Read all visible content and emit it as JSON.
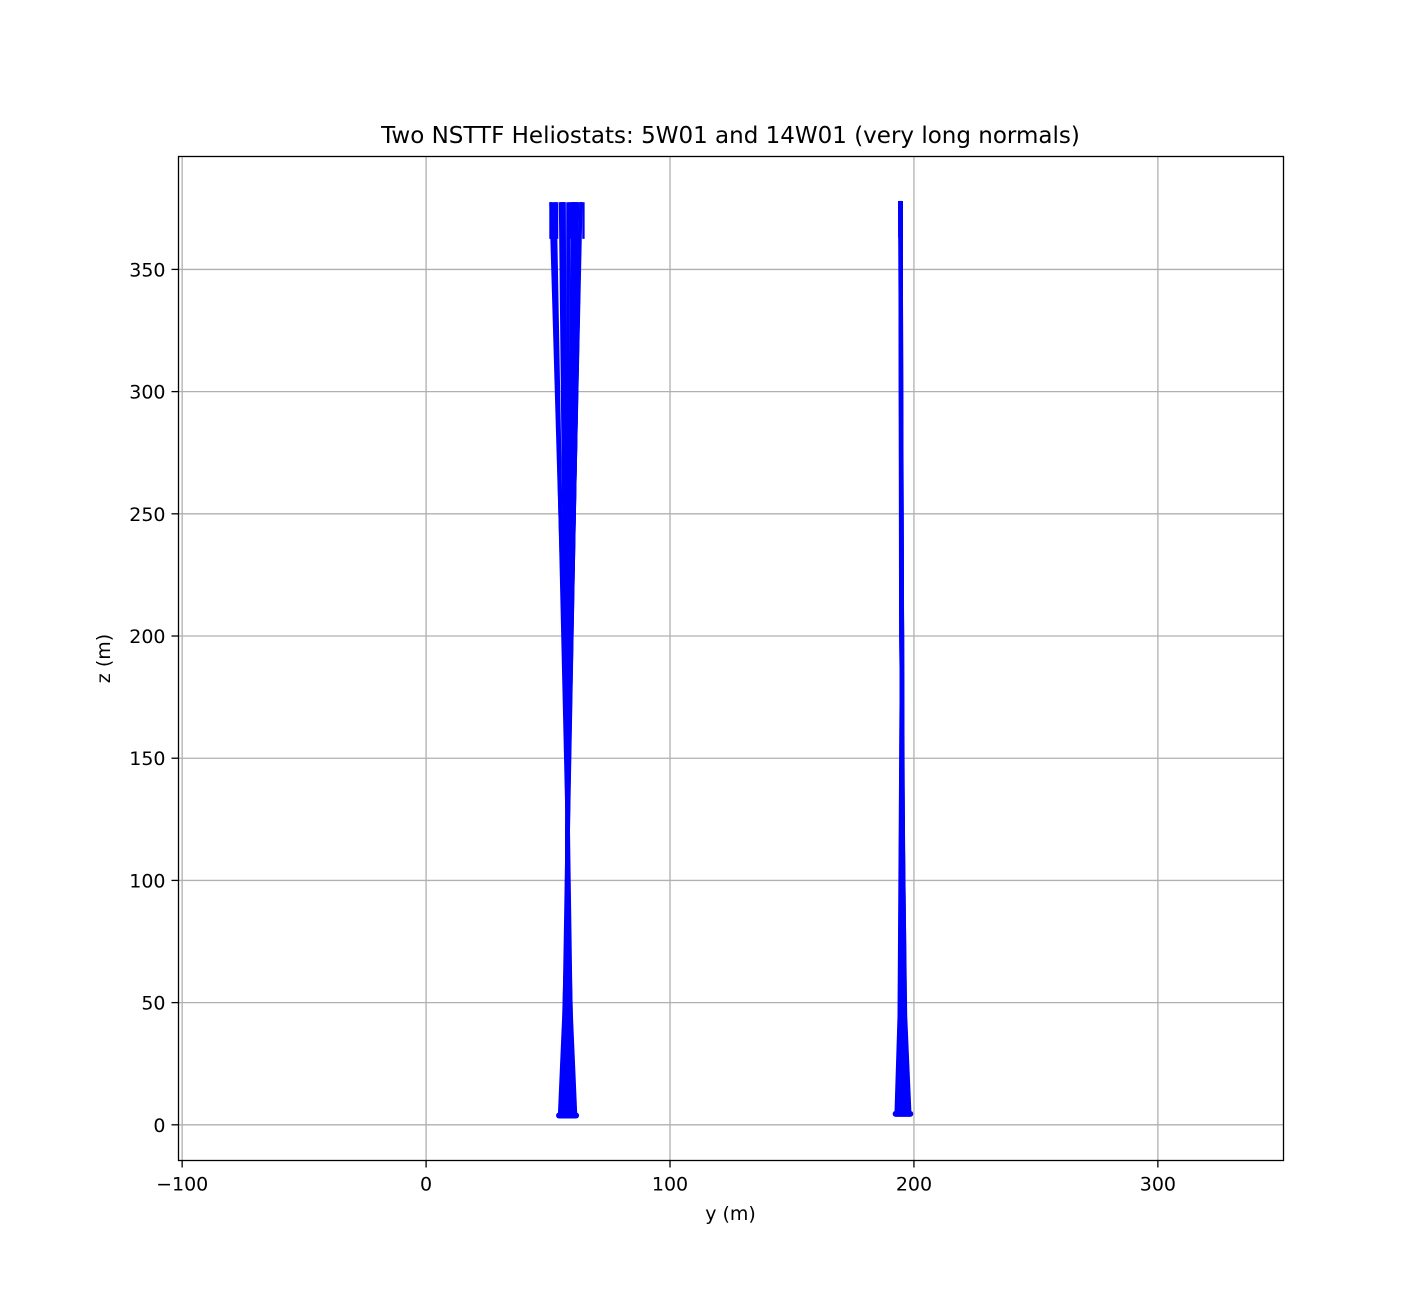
{
  "chart_data": {
    "type": "line",
    "title": "Two NSTTF Heliostats: 5W01 and 14W01 (very long normals)",
    "xlabel": "y (m)",
    "ylabel": "z (m)",
    "xlim": [
      -101.5,
      351.5
    ],
    "ylim": [
      -14.6,
      396.2
    ],
    "xticks": [
      -100,
      0,
      100,
      200,
      300
    ],
    "xtick_labels": [
      "−100",
      "0",
      "100",
      "200",
      "300"
    ],
    "yticks": [
      0,
      50,
      100,
      150,
      200,
      250,
      300,
      350
    ],
    "ytick_labels": [
      "0",
      "50",
      "100",
      "150",
      "200",
      "250",
      "300",
      "350"
    ],
    "grid": true,
    "line_color": "#0000ff",
    "series": [
      {
        "base_y_range": [
          54.5,
          61.5
        ],
        "base_z": 3.8,
        "top_y_range": [
          51.0,
          64.5
        ],
        "top_z": 377.5,
        "waist_y": 58.0,
        "waist_z": 120.0
      },
      {
        "base_y_range": [
          192.5,
          198.5
        ],
        "base_z": 4.5,
        "top_y_range": [
          194.0,
          195.0
        ],
        "top_z": 378.0,
        "waist_y": 195.0,
        "waist_z": 200.0
      }
    ]
  }
}
